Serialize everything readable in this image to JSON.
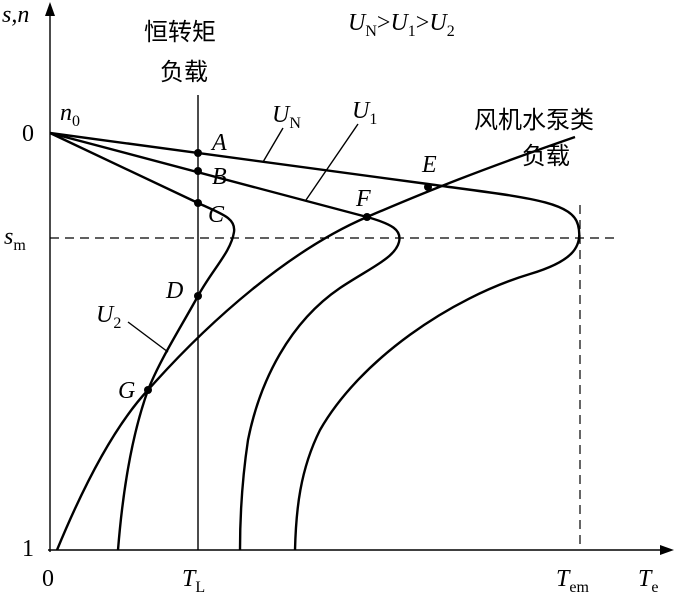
{
  "load_constant_torque": {
    "line1": "恒转矩",
    "line2": "负载"
  },
  "load_fan_pump": {
    "line1": "风机水泵类",
    "line2": "负载"
  },
  "condition": {
    "u_n": {
      "main": "U",
      "sub": "N"
    },
    "gt_1": ">",
    "u_1": {
      "main": "U",
      "sub": "1"
    },
    "gt_2": ">",
    "u_2": {
      "main": "U",
      "sub": "2"
    }
  },
  "y_axis": {
    "label": "s,n",
    "tick_0": "0",
    "tick_1": "1",
    "s_m": {
      "main": "s",
      "sub": "m"
    },
    "n_0": {
      "main": "n",
      "sub": "0"
    }
  },
  "x_axis": {
    "label": {
      "main": "T",
      "sub": "e"
    },
    "origin": "0",
    "t_l": {
      "main": "T",
      "sub": "L"
    },
    "t_em": {
      "main": "T",
      "sub": "em"
    }
  },
  "curve_labels": {
    "u_n": {
      "main": "U",
      "sub": "N"
    },
    "u_1": {
      "main": "U",
      "sub": "1"
    },
    "u_2": {
      "main": "U",
      "sub": "2"
    }
  },
  "points": [
    "A",
    "B",
    "C",
    "D",
    "E",
    "F",
    "G"
  ]
}
